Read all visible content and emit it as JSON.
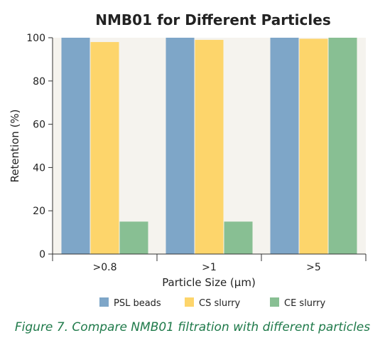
{
  "caption": "Figure 7. Compare NMB01 filtration with different particles",
  "chart_data": {
    "type": "bar",
    "title": "NMB01 for Different Particles",
    "xlabel": "Particle Size (μm)",
    "ylabel": "Retention (%)",
    "categories": [
      ">0.8",
      ">1",
      ">5"
    ],
    "ylim": [
      0,
      100
    ],
    "yticks": [
      0,
      20,
      40,
      60,
      80,
      100
    ],
    "grid": false,
    "legend_position": "bottom",
    "plot_background": "#f5f3ee",
    "series": [
      {
        "name": "PSL beads",
        "color": "#7ea6c8",
        "values": [
          100,
          100,
          100
        ]
      },
      {
        "name": "CS slurry",
        "color": "#fdd56b",
        "values": [
          98,
          99,
          99.5
        ]
      },
      {
        "name": "CE slurry",
        "color": "#88bf93",
        "values": [
          15,
          15,
          100
        ]
      }
    ]
  }
}
